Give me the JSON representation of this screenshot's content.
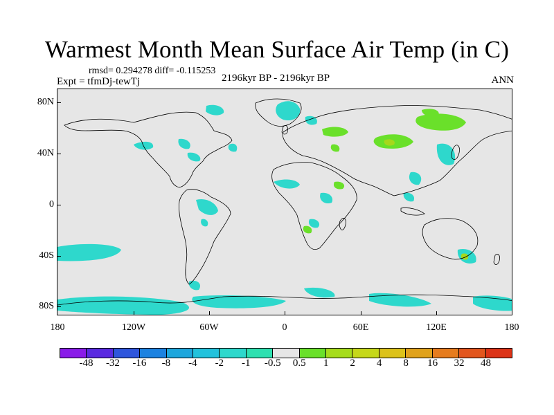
{
  "title": "Warmest Month Mean Surface Air Temp (in C)",
  "stats": "rmsd= 0.294278 diff= -0.115253",
  "expt": "Expt = tfmDj-tewTj",
  "period": "2196kyr BP - 2196kyr BP",
  "season": "ANN",
  "lat_labels": [
    "80N",
    "40N",
    "0",
    "40S",
    "80S"
  ],
  "lon_labels": [
    "180",
    "120W",
    "60W",
    "0",
    "60E",
    "120E",
    "180"
  ],
  "colorbar": {
    "labels": [
      "-48",
      "-32",
      "-16",
      "-8",
      "-4",
      "-2",
      "-1",
      "-0.5",
      "0.5",
      "1",
      "2",
      "4",
      "8",
      "16",
      "32",
      "48"
    ],
    "colors": [
      "#8a1ce8",
      "#5a2ae0",
      "#2f56dc",
      "#1c82e0",
      "#1ea6dc",
      "#22c2dc",
      "#2ed8cc",
      "#2ee0b0",
      "#e6e6e6",
      "#6ae02a",
      "#a6dc1c",
      "#c6d81a",
      "#dcc21a",
      "#e0a21c",
      "#e67c1e",
      "#e2561e",
      "#dc3418"
    ]
  },
  "colors": {
    "cool": "#2ed8cc",
    "warm": "#6ae02a",
    "warmer": "#a6d81c",
    "background": "#e6e6e6"
  }
}
